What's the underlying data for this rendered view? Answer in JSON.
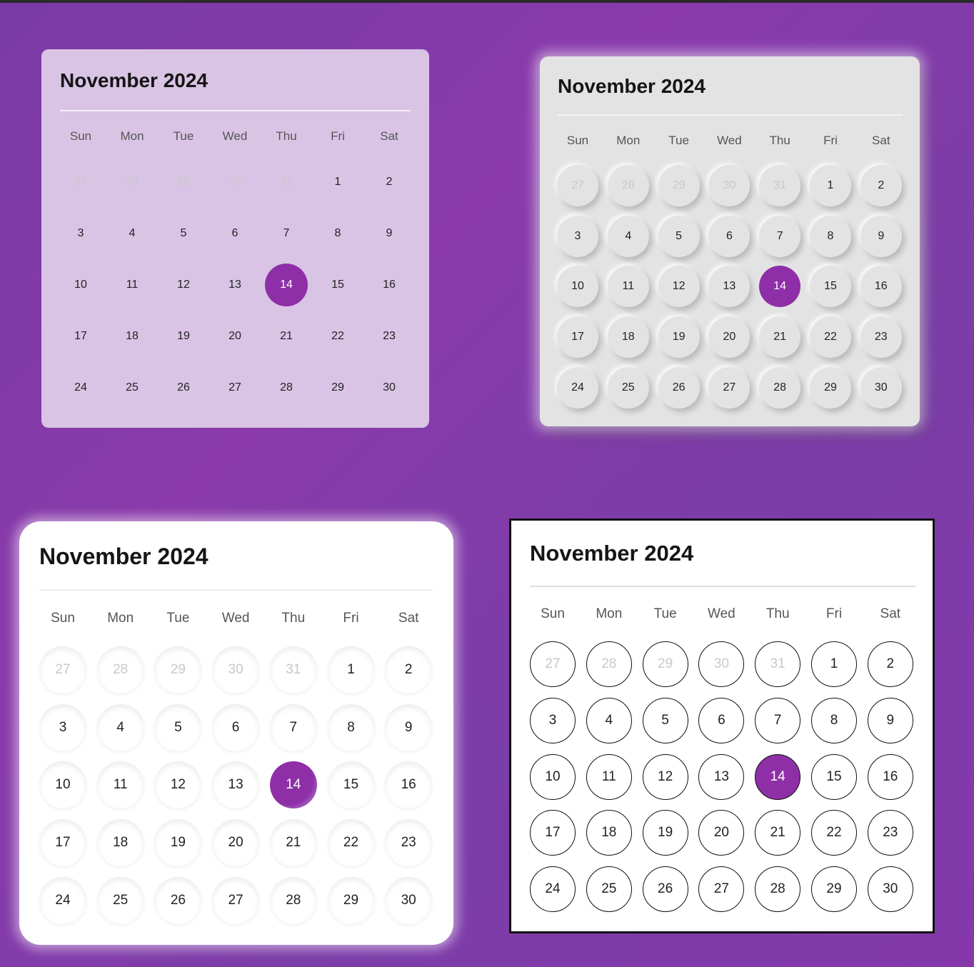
{
  "accent_color": "#8e2fa8",
  "calendars": [
    {
      "style": "glass",
      "title": "November 2024"
    },
    {
      "style": "neumorphic",
      "title": "November 2024"
    },
    {
      "style": "soft-white",
      "title": "November 2024"
    },
    {
      "style": "outlined",
      "title": "November 2024"
    }
  ],
  "weekdays": [
    "Sun",
    "Mon",
    "Tue",
    "Wed",
    "Thu",
    "Fri",
    "Sat"
  ],
  "days": [
    {
      "label": "27",
      "muted": true
    },
    {
      "label": "28",
      "muted": true
    },
    {
      "label": "29",
      "muted": true
    },
    {
      "label": "30",
      "muted": true
    },
    {
      "label": "31",
      "muted": true
    },
    {
      "label": "1"
    },
    {
      "label": "2"
    },
    {
      "label": "3"
    },
    {
      "label": "4"
    },
    {
      "label": "5"
    },
    {
      "label": "6"
    },
    {
      "label": "7"
    },
    {
      "label": "8"
    },
    {
      "label": "9"
    },
    {
      "label": "10"
    },
    {
      "label": "11"
    },
    {
      "label": "12"
    },
    {
      "label": "13"
    },
    {
      "label": "14",
      "selected": true
    },
    {
      "label": "15"
    },
    {
      "label": "16"
    },
    {
      "label": "17"
    },
    {
      "label": "18"
    },
    {
      "label": "19"
    },
    {
      "label": "20"
    },
    {
      "label": "21"
    },
    {
      "label": "22"
    },
    {
      "label": "23"
    },
    {
      "label": "24"
    },
    {
      "label": "25"
    },
    {
      "label": "26"
    },
    {
      "label": "27"
    },
    {
      "label": "28"
    },
    {
      "label": "29"
    },
    {
      "label": "30"
    }
  ]
}
